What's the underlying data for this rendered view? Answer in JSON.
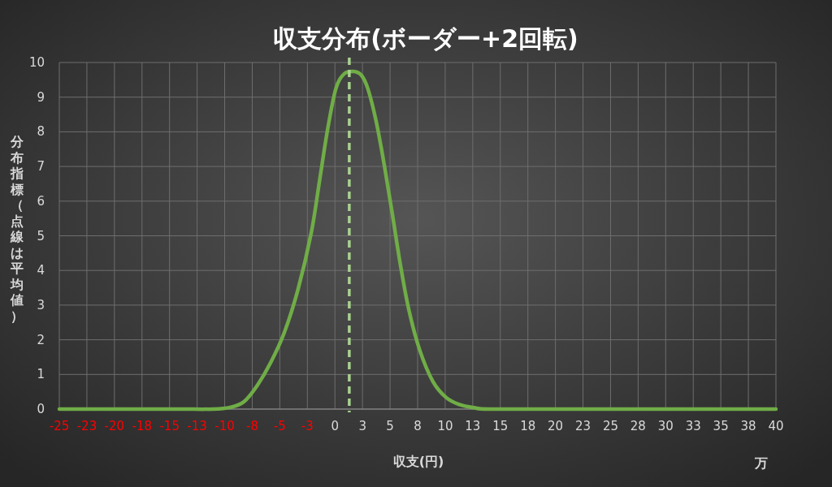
{
  "chart_data": {
    "type": "line",
    "title": "収支分布(ボーダー+2回転)",
    "xlabel": "収支(円)",
    "ylabel": "分布指標（点線は平均値）",
    "annotations": [
      "万"
    ],
    "x": [
      -25,
      -15,
      -11,
      -9.49,
      -8.26,
      -7.05,
      -5.83,
      -4.6,
      -3.35,
      -2.14,
      -1.4,
      -0.67,
      0.07,
      0.8,
      1.66,
      2.4,
      3.0,
      3.74,
      4.47,
      5.2,
      5.94,
      6.68,
      7.66,
      8.88,
      10.1,
      11.3,
      12.6,
      14,
      20,
      30,
      40
    ],
    "series": [
      {
        "color": "#70ad47",
        "values": [
          0,
          0,
          0,
          0.05,
          0.21,
          0.68,
          1.34,
          2.2,
          3.45,
          5.1,
          6.58,
          8.06,
          9.23,
          9.66,
          9.74,
          9.63,
          9.23,
          8.3,
          7.05,
          5.64,
          4.16,
          2.9,
          1.73,
          0.8,
          0.33,
          0.13,
          0.04,
          0,
          0,
          0,
          0
        ]
      }
    ],
    "xlim": [
      -25,
      40
    ],
    "xticks": [
      {
        "value": -25,
        "label": "-25"
      },
      {
        "value": -22.5,
        "label": "-23"
      },
      {
        "value": -20,
        "label": "-20"
      },
      {
        "value": -17.5,
        "label": "-18"
      },
      {
        "value": -15,
        "label": "-15"
      },
      {
        "value": -12.5,
        "label": "-13"
      },
      {
        "value": -10,
        "label": "-10"
      },
      {
        "value": -7.5,
        "label": "-8"
      },
      {
        "value": -5,
        "label": "-5"
      },
      {
        "value": -2.5,
        "label": "-3"
      },
      {
        "value": 0,
        "label": "0"
      },
      {
        "value": 2.5,
        "label": "3"
      },
      {
        "value": 5,
        "label": "5"
      },
      {
        "value": 7.5,
        "label": "8"
      },
      {
        "value": 10,
        "label": "10"
      },
      {
        "value": 12.5,
        "label": "13"
      },
      {
        "value": 15,
        "label": "15"
      },
      {
        "value": 17.5,
        "label": "18"
      },
      {
        "value": 20,
        "label": "20"
      },
      {
        "value": 22.5,
        "label": "23"
      },
      {
        "value": 25,
        "label": "25"
      },
      {
        "value": 27.5,
        "label": "28"
      },
      {
        "value": 30,
        "label": "30"
      },
      {
        "value": 32.5,
        "label": "33"
      },
      {
        "value": 35,
        "label": "35"
      },
      {
        "value": 37.5,
        "label": "38"
      },
      {
        "value": 40,
        "label": "40"
      }
    ],
    "ylim": [
      0,
      10
    ],
    "yticks": [
      0,
      1,
      2,
      3,
      4,
      5,
      6,
      7,
      8,
      9,
      10
    ],
    "grid": true,
    "ref_lines": [
      {
        "axis": "x",
        "value": 1.3,
        "color": "#a9d18e",
        "line_style": "dashed"
      }
    ]
  }
}
